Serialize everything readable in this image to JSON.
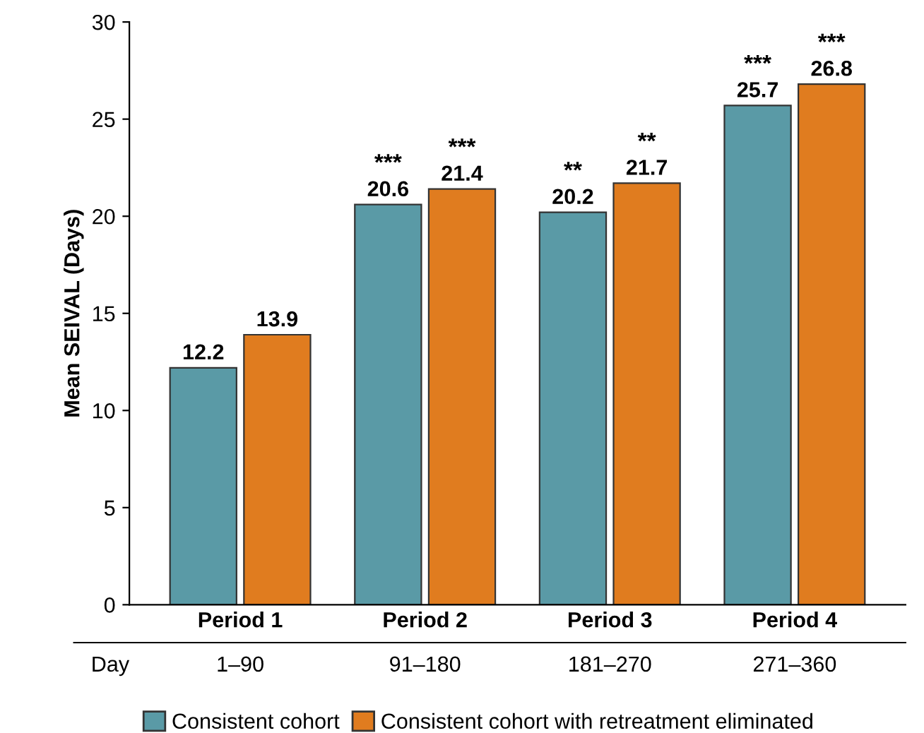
{
  "chart_data": {
    "type": "bar",
    "ylabel": "Mean SEIVAL (Days)",
    "categories": [
      "Period 1",
      "Period 2",
      "Period 3",
      "Period 4"
    ],
    "series": [
      {
        "name": "Consistent cohort",
        "color": "#5a9aa6",
        "values": [
          12.2,
          20.6,
          20.2,
          25.7
        ]
      },
      {
        "name": "Consistent cohort with retreatment eliminated",
        "color": "#e07c1f",
        "values": [
          13.9,
          21.4,
          21.7,
          26.8
        ]
      }
    ],
    "ylim": [
      0,
      30
    ],
    "yticks": [
      0,
      5,
      10,
      15,
      20,
      25,
      30
    ],
    "data_labels": true,
    "grid": false,
    "legend": "bottom",
    "annotations": [
      {
        "text": "***",
        "x": "Period 2",
        "y": 20.6
      },
      {
        "text": "***",
        "x": "Period 2",
        "y": 21.4
      },
      {
        "text": "**",
        "x": "Period 3",
        "y": 20.2
      },
      {
        "text": "**",
        "x": "Period 3",
        "y": 21.7
      },
      {
        "text": "***",
        "x": "Period 4",
        "y": 25.7
      },
      {
        "text": "***",
        "x": "Period 4",
        "y": 26.8
      },
      "Day",
      "1–90",
      "91–180",
      "181–270",
      "271–360"
    ]
  }
}
